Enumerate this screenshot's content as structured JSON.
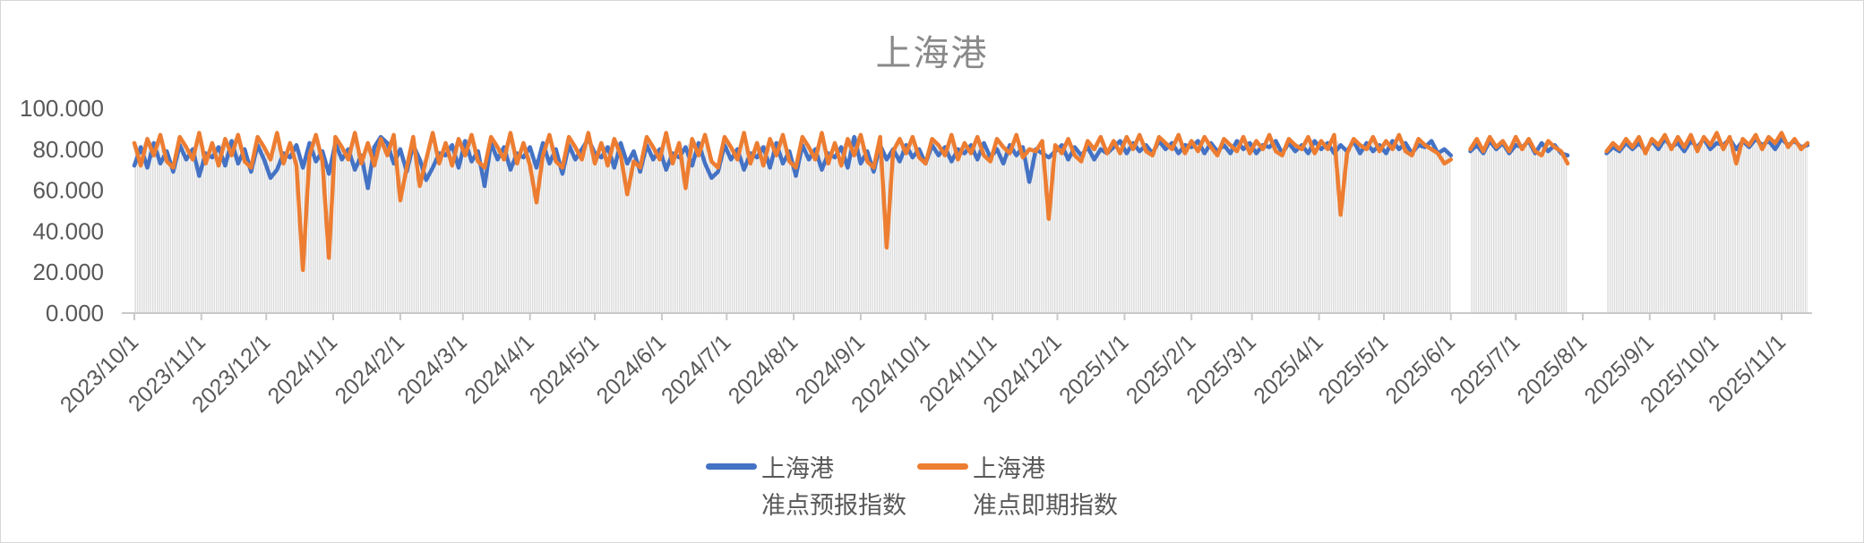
{
  "chart_data": {
    "type": "line",
    "title": "上海港",
    "xlabel": "",
    "ylabel": "",
    "ylim": [
      0,
      100
    ],
    "grid": false,
    "legend_position": "bottom",
    "background_droplines": true,
    "y_ticks": [
      {
        "label": "100.000",
        "value": 100
      },
      {
        "label": "80.000",
        "value": 80
      },
      {
        "label": "60.000",
        "value": 60
      },
      {
        "label": "40.000",
        "value": 40
      },
      {
        "label": "20.000",
        "value": 20
      },
      {
        "label": "0.000",
        "value": 0
      }
    ],
    "x_tick_labels": [
      "2023/10/1",
      "2023/11/1",
      "2023/12/1",
      "2024/1/1",
      "2024/2/1",
      "2024/3/1",
      "2024/4/1",
      "2024/5/1",
      "2024/6/1",
      "2024/7/1",
      "2024/8/1",
      "2024/9/1",
      "2024/10/1",
      "2024/11/1",
      "2024/12/1",
      "2025/1/1",
      "2025/2/1",
      "2025/3/1",
      "2025/4/1",
      "2025/5/1",
      "2025/6/1",
      "2025/7/1",
      "2025/8/1",
      "2025/9/1",
      "2025/10/1",
      "2025/11/1"
    ],
    "start_date": "2023/10/1",
    "sample_interval_days": 3,
    "series": [
      {
        "name": "上海港准点预报指数",
        "color": "#4472C4",
        "values": [
          72,
          81,
          71,
          83,
          73,
          79,
          69,
          82,
          75,
          80,
          67,
          78,
          76,
          81,
          72,
          84,
          73,
          80,
          69,
          82,
          75,
          66,
          70,
          78,
          76,
          82,
          71,
          83,
          74,
          79,
          68,
          83,
          75,
          80,
          70,
          77,
          61,
          81,
          86,
          83,
          73,
          80,
          69,
          82,
          75,
          65,
          71,
          78,
          77,
          82,
          71,
          84,
          74,
          79,
          62,
          83,
          75,
          81,
          70,
          78,
          76,
          81,
          71,
          83,
          73,
          80,
          68,
          82,
          75,
          80,
          85,
          78,
          76,
          81,
          71,
          83,
          73,
          79,
          69,
          82,
          75,
          80,
          70,
          78,
          76,
          81,
          72,
          83,
          73,
          66,
          69,
          82,
          75,
          80,
          70,
          78,
          76,
          81,
          71,
          83,
          73,
          79,
          67,
          82,
          75,
          80,
          70,
          78,
          76,
          81,
          71,
          86,
          73,
          79,
          69,
          82,
          75,
          80,
          74,
          82,
          76,
          80,
          73,
          82,
          77,
          81,
          74,
          80,
          78,
          82,
          75,
          83,
          76,
          80,
          73,
          82,
          77,
          81,
          64,
          80,
          78,
          76,
          79,
          82,
          75,
          81,
          77,
          81,
          75,
          80,
          78,
          81,
          84,
          78,
          83,
          79,
          82,
          78,
          84,
          80,
          83,
          78,
          82,
          81,
          84,
          78,
          83,
          79,
          82,
          78,
          84,
          80,
          83,
          78,
          82,
          81,
          84,
          78,
          83,
          79,
          82,
          78,
          84,
          80,
          83,
          78,
          82,
          79,
          84,
          78,
          83,
          79,
          82,
          78,
          84,
          80,
          83,
          78,
          82,
          81,
          84,
          78,
          80,
          77,
          null,
          null,
          79,
          82,
          78,
          84,
          80,
          83,
          78,
          82,
          81,
          84,
          78,
          83,
          79,
          82,
          78,
          77,
          null,
          null,
          null,
          null,
          null,
          78,
          81,
          79,
          83,
          80,
          83,
          79,
          84,
          80,
          85,
          81,
          83,
          79,
          84,
          81,
          85,
          80,
          83,
          82,
          85,
          80,
          84,
          81,
          85,
          82,
          84,
          80,
          85,
          82,
          84,
          81,
          82
        ]
      },
      {
        "name": "上海港准点即期指数",
        "color": "#ED7D31",
        "values": [
          83,
          72,
          85,
          77,
          87,
          74,
          71,
          86,
          81,
          75,
          88,
          73,
          83,
          72,
          85,
          77,
          87,
          74,
          71,
          86,
          81,
          75,
          88,
          73,
          83,
          72,
          21,
          77,
          87,
          74,
          27,
          86,
          81,
          75,
          88,
          73,
          83,
          72,
          85,
          77,
          87,
          55,
          71,
          86,
          62,
          75,
          88,
          73,
          83,
          72,
          85,
          77,
          87,
          74,
          71,
          86,
          81,
          75,
          88,
          73,
          83,
          72,
          54,
          77,
          87,
          74,
          71,
          86,
          81,
          75,
          88,
          73,
          83,
          72,
          85,
          77,
          58,
          74,
          71,
          86,
          81,
          75,
          88,
          73,
          83,
          61,
          85,
          77,
          87,
          74,
          71,
          86,
          81,
          75,
          88,
          73,
          83,
          72,
          85,
          77,
          87,
          74,
          71,
          86,
          81,
          75,
          88,
          73,
          83,
          72,
          85,
          77,
          87,
          74,
          71,
          86,
          32,
          79,
          85,
          78,
          86,
          76,
          73,
          85,
          82,
          77,
          87,
          75,
          83,
          78,
          86,
          77,
          74,
          85,
          81,
          78,
          87,
          76,
          80,
          79,
          84,
          46,
          82,
          78,
          85,
          77,
          74,
          84,
          80,
          86,
          78,
          84,
          78,
          86,
          80,
          87,
          79,
          77,
          86,
          83,
          80,
          87,
          78,
          84,
          79,
          86,
          81,
          77,
          85,
          82,
          79,
          86,
          78,
          84,
          80,
          87,
          79,
          77,
          85,
          82,
          80,
          86,
          78,
          84,
          80,
          87,
          48,
          78,
          85,
          82,
          80,
          86,
          79,
          84,
          80,
          87,
          79,
          77,
          85,
          82,
          80,
          78,
          73,
          75,
          null,
          null,
          80,
          85,
          79,
          86,
          81,
          84,
          79,
          86,
          80,
          85,
          79,
          77,
          84,
          81,
          79,
          73,
          null,
          null,
          null,
          null,
          null,
          79,
          83,
          80,
          85,
          81,
          86,
          78,
          85,
          82,
          87,
          80,
          86,
          81,
          87,
          79,
          86,
          82,
          88,
          80,
          86,
          73,
          85,
          82,
          87,
          80,
          86,
          83,
          88,
          81,
          85,
          80,
          83
        ]
      }
    ]
  },
  "legend": {
    "items": [
      {
        "line1": "上海港",
        "line2": "准点预报指数",
        "color": "#4472C4"
      },
      {
        "line1": "上海港",
        "line2": "准点即期指数",
        "color": "#ED7D31"
      }
    ]
  }
}
